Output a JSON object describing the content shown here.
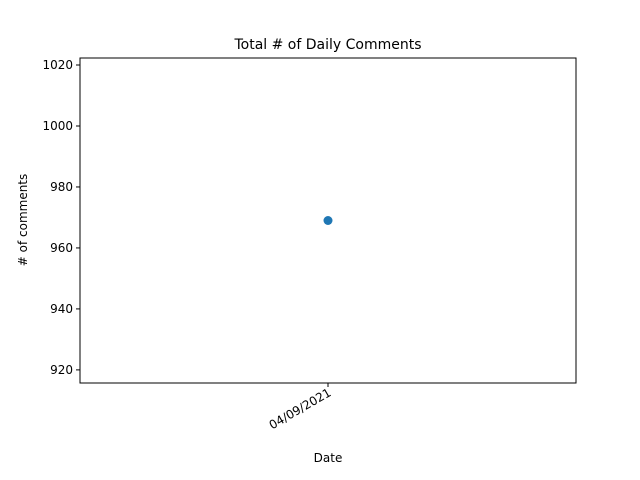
{
  "chart_data": {
    "type": "scatter",
    "title": "Total # of Daily Comments",
    "xlabel": "Date",
    "ylabel": "# of comments",
    "x": [
      "04/09/2021"
    ],
    "y": [
      969
    ],
    "xtick_labels": [
      "04/09/2021"
    ],
    "ylim": [
      915.7,
      1022.3
    ],
    "yticks": [
      920,
      940,
      960,
      980,
      1000,
      1020
    ],
    "ytick_labels": [
      "920",
      "940",
      "960",
      "980",
      "1000",
      "1020"
    ],
    "grid": false,
    "legend": "none",
    "colors": {
      "marker": "#1f77b4",
      "axes": "#000000",
      "background": "#ffffff"
    }
  }
}
